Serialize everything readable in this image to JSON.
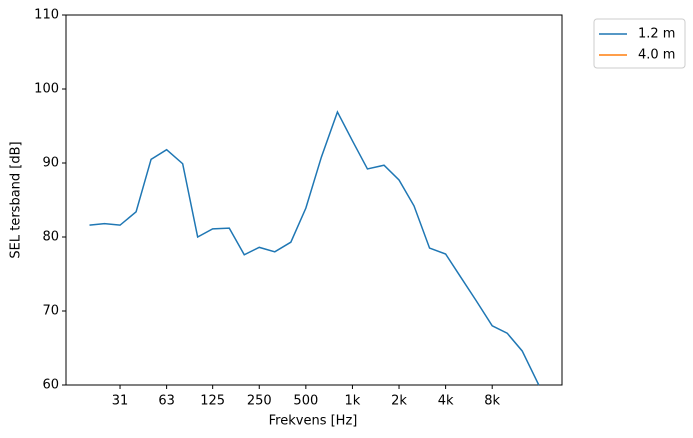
{
  "chart_data": {
    "type": "line",
    "x": [
      20,
      25,
      31.5,
      40,
      50,
      63,
      80,
      100,
      125,
      160,
      200,
      250,
      315,
      400,
      500,
      630,
      800,
      1000,
      1250,
      1600,
      2000,
      2500,
      3150,
      4000,
      5000,
      6300,
      8000,
      10000,
      12500,
      16000
    ],
    "series": [
      {
        "name": "1.2 m",
        "color": "#1f77b4",
        "values": [
          81.6,
          81.8,
          81.6,
          83.4,
          90.5,
          91.8,
          89.9,
          80.0,
          81.1,
          81.2,
          77.6,
          78.6,
          78.0,
          79.3,
          83.9,
          90.8,
          96.9,
          93.0,
          89.2,
          89.7,
          87.7,
          84.2,
          78.5,
          77.7,
          74.6,
          71.4,
          68.0,
          67.0,
          64.6,
          60.0
        ]
      },
      {
        "name": "4.0 m",
        "color": "#ff7f0e",
        "values": [
          null,
          null,
          null,
          null,
          null,
          null,
          null,
          null,
          null,
          null,
          null,
          null,
          null,
          null,
          null,
          null,
          null,
          null,
          null,
          null,
          null,
          null,
          null,
          null,
          null,
          null,
          null,
          null,
          null,
          null
        ]
      }
    ],
    "xlabel": "Frekvens [Hz]",
    "ylabel": "SEL tersband [dB]",
    "xscale": "log",
    "xlim": [
      14.1,
      22600
    ],
    "xticks": [
      {
        "value": 31.5,
        "label": "31"
      },
      63,
      125,
      250,
      500,
      {
        "value": 1000,
        "label": "1k"
      },
      {
        "value": 2000,
        "label": "2k"
      },
      {
        "value": 4000,
        "label": "4k"
      },
      {
        "value": 8000,
        "label": "8k"
      }
    ],
    "ylim": [
      60,
      110
    ],
    "yticks": [
      60,
      70,
      80,
      90,
      100,
      110
    ],
    "legend": "outside-upper-right"
  }
}
